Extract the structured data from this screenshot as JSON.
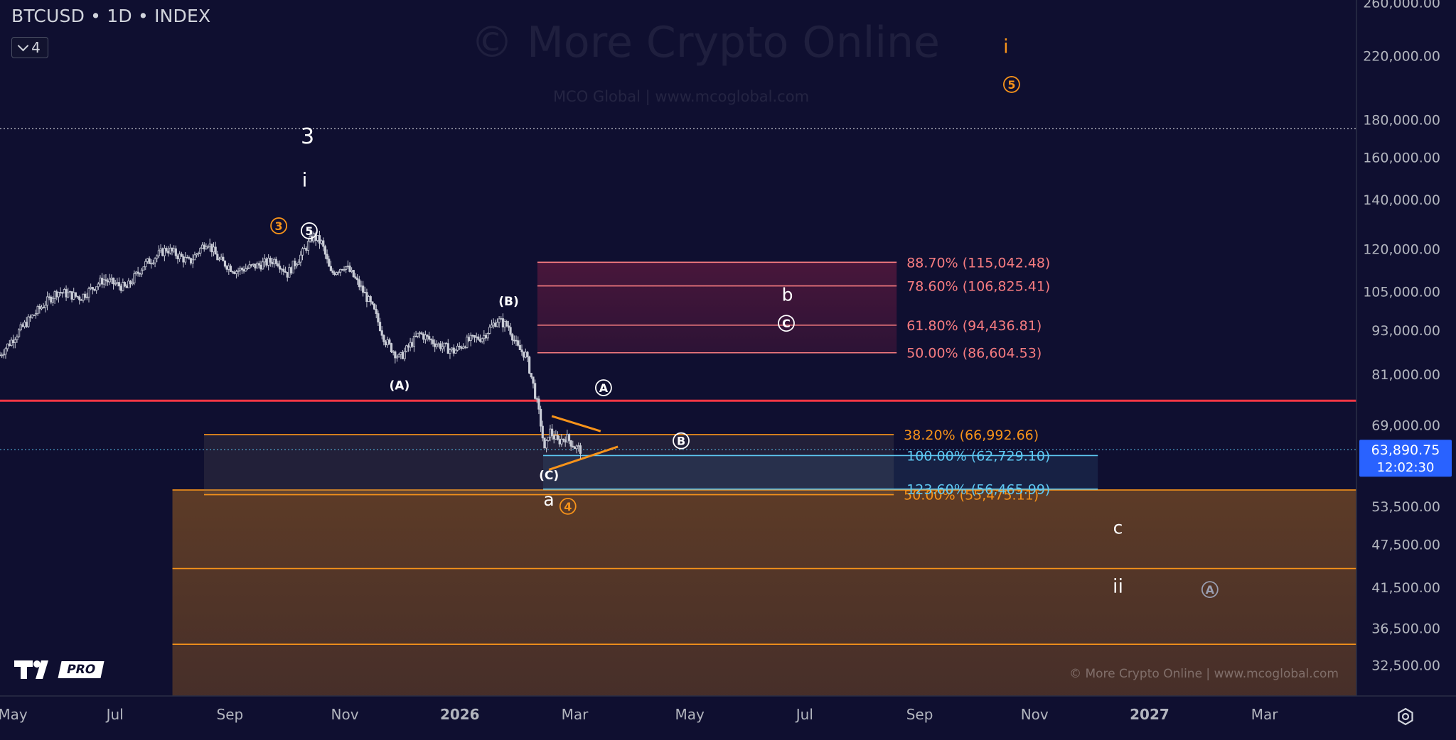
{
  "header": {
    "title": "BTCUSD • 1D • INDEX",
    "indicator_count": "4"
  },
  "watermark": {
    "title": "© More Crypto Online",
    "subtitle": "MCO Global   |   www.mcoglobal.com",
    "footer": "© More Crypto Online   |   www.mcoglobal.com"
  },
  "logo": {
    "pro_label": "PRO"
  },
  "colors": {
    "background": "#0f0f30",
    "candle": "#c9ccd6",
    "orange": "#f7931a",
    "red": "#f23645",
    "pink": "#f77c80",
    "cyan": "#5ec8f2",
    "price_tag": "#2962ff",
    "white": "#ffffff"
  },
  "chart_data": {
    "type": "candlestick",
    "title": "BTCUSD • 1D • INDEX",
    "scale": "log",
    "ylim": [
      29500,
      262000
    ],
    "x_range_months": [
      0,
      23.6
    ],
    "x_start": "May 2025",
    "x_ticks": [
      {
        "m": 0,
        "label": "May"
      },
      {
        "m": 2,
        "label": "Jul"
      },
      {
        "m": 4,
        "label": "Sep"
      },
      {
        "m": 6,
        "label": "Nov"
      },
      {
        "m": 8,
        "label": "2026",
        "bold": true
      },
      {
        "m": 10,
        "label": "Mar"
      },
      {
        "m": 12,
        "label": "May"
      },
      {
        "m": 14,
        "label": "Jul"
      },
      {
        "m": 16,
        "label": "Sep"
      },
      {
        "m": 18,
        "label": "Nov"
      },
      {
        "m": 20,
        "label": "2027",
        "bold": true
      },
      {
        "m": 22,
        "label": "Mar"
      }
    ],
    "y_ticks": [
      "260,000.00",
      "220,000.00",
      "180,000.00",
      "160,000.00",
      "140,000.00",
      "120,000.00",
      "105,000.00",
      "93,000.00",
      "81,000.00",
      "69,000.00",
      "53,500.00",
      "47,500.00",
      "41,500.00",
      "36,500.00",
      "32,500.00"
    ],
    "y_tick_values": [
      260000,
      220000,
      180000,
      160000,
      140000,
      120000,
      105000,
      93000,
      81000,
      69000,
      53500,
      47500,
      41500,
      36500,
      32500
    ],
    "current_price": {
      "value": 63890.75,
      "label": "63,890.75",
      "countdown": "12:02:30"
    },
    "price_path": [
      [
        0,
        86000
      ],
      [
        0.5,
        96000
      ],
      [
        1,
        105000
      ],
      [
        1.4,
        103000
      ],
      [
        1.8,
        109000
      ],
      [
        2.2,
        106000
      ],
      [
        2.5,
        114000
      ],
      [
        2.9,
        120000
      ],
      [
        3.3,
        115000
      ],
      [
        3.6,
        123000
      ],
      [
        3.8,
        116000
      ],
      [
        4.1,
        112000
      ],
      [
        4.5,
        114000
      ],
      [
        4.8,
        116000
      ],
      [
        5.0,
        111000
      ],
      [
        5.25,
        118000
      ],
      [
        5.45,
        125000
      ],
      [
        5.6,
        122000
      ],
      [
        5.75,
        111000
      ],
      [
        6.0,
        114000
      ],
      [
        6.15,
        110000
      ],
      [
        6.35,
        104000
      ],
      [
        6.5,
        99000
      ],
      [
        6.7,
        90000
      ],
      [
        6.95,
        85000
      ],
      [
        7.1,
        88000
      ],
      [
        7.3,
        92000
      ],
      [
        7.6,
        89000
      ],
      [
        7.9,
        87000
      ],
      [
        8.15,
        90000
      ],
      [
        8.4,
        91000
      ],
      [
        8.65,
        96000
      ],
      [
        8.85,
        94000
      ],
      [
        9.0,
        88000
      ],
      [
        9.15,
        86000
      ],
      [
        9.28,
        78000
      ],
      [
        9.4,
        70000
      ],
      [
        9.48,
        63000
      ],
      [
        9.55,
        68000
      ],
      [
        9.7,
        65500
      ],
      [
        9.85,
        66500
      ],
      [
        10.0,
        64500
      ],
      [
        10.1,
        63891
      ]
    ],
    "horizontal_levels": [
      {
        "name": "red-resistance",
        "value": 74500,
        "color": "red"
      },
      {
        "name": "dotted-high",
        "value": 175000,
        "color": "white",
        "dotted": true
      },
      {
        "name": "dotted-current",
        "value": 63891,
        "color": "cyan",
        "dotted": true
      }
    ],
    "fib_zones": [
      {
        "name": "red-fib-zone",
        "x0": 9.35,
        "x1": 15.6,
        "color": "pink",
        "levels": [
          {
            "pct": "88.70%",
            "value": 115042.48,
            "label": "88.70% (115,042.48)"
          },
          {
            "pct": "78.60%",
            "value": 106825.41,
            "label": "78.60% (106,825.41)"
          },
          {
            "pct": "61.80%",
            "value": 94436.81,
            "label": "61.80% (94,436.81)"
          },
          {
            "pct": "50.00%",
            "value": 86604.53,
            "label": "50.00% (86,604.53)"
          }
        ]
      },
      {
        "name": "orange-fib-zone",
        "x0": 3.55,
        "x1": 15.55,
        "color": "orange",
        "levels": [
          {
            "pct": "38.20%",
            "value": 66992.66,
            "label": "38.20% (66,992.66)"
          },
          {
            "pct": "50.00%",
            "value": 55475.11,
            "label": "50.00% (55,475.11)"
          }
        ]
      },
      {
        "name": "cyan-fib-zone",
        "x0": 9.45,
        "x1": 19.1,
        "color": "cyan",
        "levels": [
          {
            "pct": "100.00%",
            "value": 62729.1,
            "label": "100.00% (62,729.10)"
          },
          {
            "pct": "123.60%",
            "value": 56465.99,
            "label": "123.60% (56,465.99)"
          }
        ]
      }
    ],
    "support_zone": {
      "x0": 3.0,
      "x1": 23.6,
      "top": 56300,
      "bottom": 29500,
      "lines": [
        56300,
        44000,
        34700
      ]
    },
    "triangle": {
      "upper": [
        [
          9.6,
          71000
        ],
        [
          10.45,
          67700
        ]
      ],
      "lower": [
        [
          9.55,
          60000
        ],
        [
          10.75,
          64500
        ]
      ]
    },
    "wave_labels": [
      {
        "text": "3",
        "m": 5.35,
        "price": 167000,
        "style": "plain",
        "color": "white",
        "size": 30
      },
      {
        "text": "i",
        "m": 5.3,
        "price": 146000,
        "style": "plain",
        "color": "white",
        "size": 27
      },
      {
        "text": "3",
        "m": 4.85,
        "price": 129000,
        "style": "circle",
        "color": "orange"
      },
      {
        "text": "5",
        "m": 5.38,
        "price": 127000,
        "style": "circle",
        "color": "white"
      },
      {
        "text": "(B)",
        "m": 8.85,
        "price": 100500,
        "style": "plain",
        "color": "white",
        "size": 17,
        "bold": true
      },
      {
        "text": "(A)",
        "m": 6.95,
        "price": 77200,
        "style": "plain",
        "color": "white",
        "size": 17,
        "bold": true
      },
      {
        "text": "A",
        "m": 10.5,
        "price": 77600,
        "style": "circle",
        "color": "white"
      },
      {
        "text": "B",
        "m": 11.85,
        "price": 65700,
        "style": "circle",
        "color": "white"
      },
      {
        "text": "(C)",
        "m": 9.55,
        "price": 58200,
        "style": "plain",
        "color": "white",
        "size": 17,
        "bold": true
      },
      {
        "text": "a",
        "m": 9.55,
        "price": 53600,
        "style": "plain",
        "color": "white",
        "size": 25
      },
      {
        "text": "4",
        "m": 9.88,
        "price": 53500,
        "style": "circle",
        "color": "orange"
      },
      {
        "text": "b",
        "m": 13.7,
        "price": 102000,
        "style": "plain",
        "color": "white",
        "size": 25
      },
      {
        "text": "C",
        "m": 13.68,
        "price": 95000,
        "style": "circle",
        "color": "white"
      },
      {
        "text": "i",
        "m": 17.5,
        "price": 222000,
        "style": "plain",
        "color": "orange",
        "size": 27
      },
      {
        "text": "5",
        "m": 17.6,
        "price": 201000,
        "style": "circle",
        "color": "orange"
      },
      {
        "text": "c",
        "m": 19.45,
        "price": 49100,
        "style": "plain",
        "color": "white",
        "size": 25
      },
      {
        "text": "ii",
        "m": 19.45,
        "price": 40800,
        "style": "plain",
        "color": "white",
        "size": 27
      },
      {
        "text": "A",
        "m": 21.05,
        "price": 41200,
        "style": "circle",
        "color": "gray"
      }
    ]
  }
}
